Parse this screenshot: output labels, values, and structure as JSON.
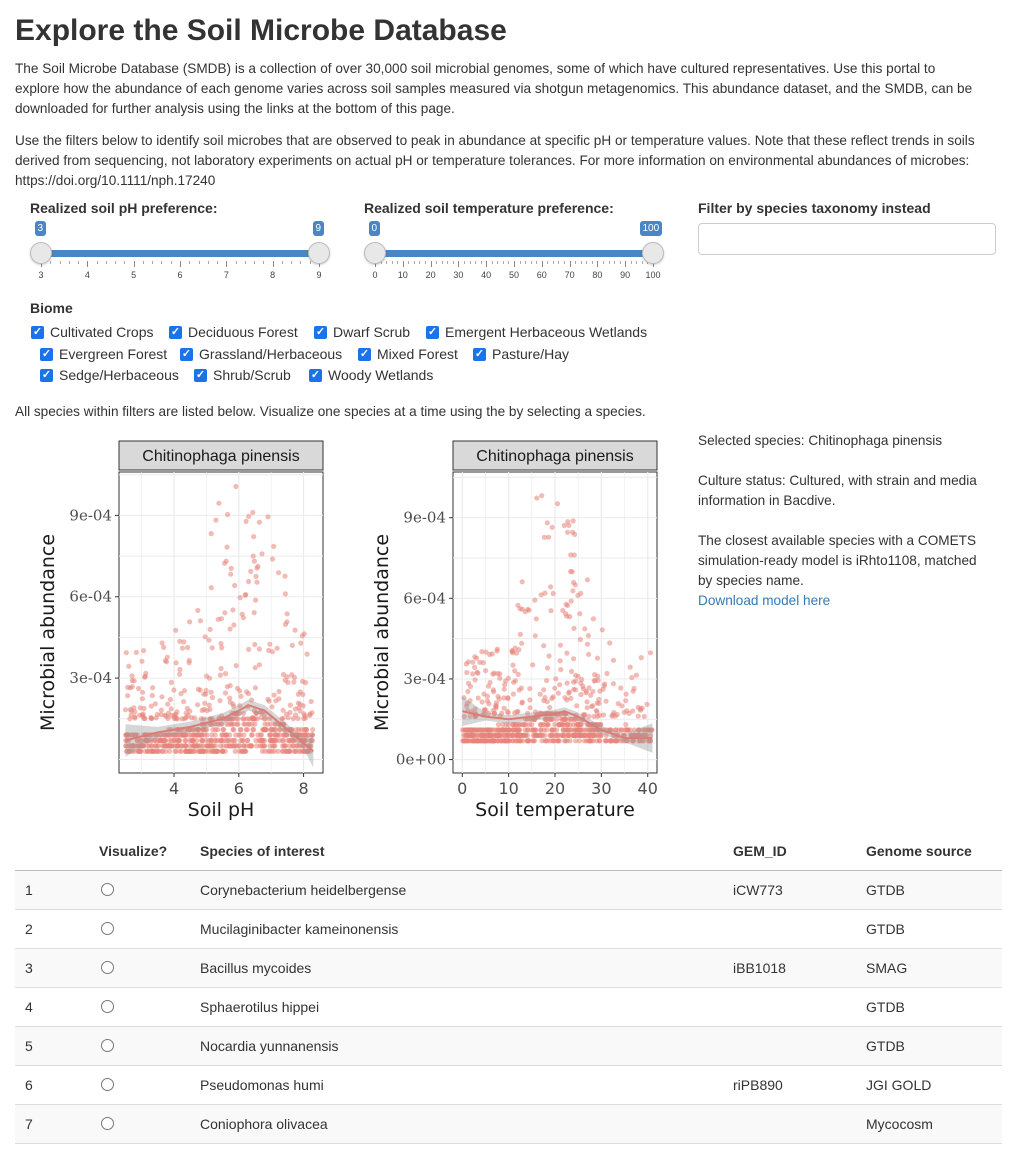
{
  "header": {
    "title": "Explore the Soil Microbe Database",
    "intro_lines": [
      "The Soil Microbe Database (SMDB) is a collection of over 30,000 soil microbial genomes, some of which have cultured representatives. Use this portal to",
      "explore how the abundance of each genome varies across soil samples measured via shotgun metagenomics. This abundance dataset, and the SMDB, can be",
      "downloaded for further analysis using the links at the bottom of this page."
    ],
    "filter_lines": [
      "Use the filters below to identify soil microbes that are observed to peak in abundance at specific pH or temperature values. Note that these reflect trends in soils",
      "derived from sequencing, not laboratory experiments on actual pH or temperature tolerances. For more information on environmental abundances of microbes:",
      "https://doi.org/10.1111/nph.17240"
    ]
  },
  "filters": {
    "ph": {
      "label": "Realized soil pH preference:",
      "min": 3,
      "max": 9,
      "low": 3,
      "high": 9,
      "low_label": "3",
      "high_label": "9",
      "tick_labels": [
        "3",
        "4",
        "5",
        "6",
        "7",
        "8",
        "9"
      ]
    },
    "temp": {
      "label": "Realized soil temperature preference:",
      "min": 0,
      "max": 100,
      "low": 0,
      "high": 100,
      "low_label": "0",
      "high_label": "100",
      "tick_labels": [
        "0",
        "10",
        "20",
        "30",
        "40",
        "50",
        "60",
        "70",
        "80",
        "90",
        "100"
      ]
    },
    "taxonomy": {
      "label": "Filter by species taxonomy instead",
      "value": "",
      "placeholder": ""
    }
  },
  "biome": {
    "label": "Biome",
    "options": [
      {
        "label": "Cultivated Crops",
        "checked": true
      },
      {
        "label": "Deciduous Forest",
        "checked": true
      },
      {
        "label": "Dwarf Scrub",
        "checked": true
      },
      {
        "label": "Emergent Herbaceous Wetlands",
        "checked": true
      },
      {
        "label": "Evergreen Forest",
        "checked": true
      },
      {
        "label": "Grassland/Herbaceous",
        "checked": true
      },
      {
        "label": "Mixed Forest",
        "checked": true
      },
      {
        "label": "Pasture/Hay",
        "checked": true
      },
      {
        "label": "Sedge/Herbaceous",
        "checked": true
      },
      {
        "label": "Shrub/Scrub",
        "checked": true
      },
      {
        "label": "Woody Wetlands",
        "checked": true
      }
    ],
    "note": "All species within filters are listed below. Visualize one species at a time using the by selecting a species."
  },
  "side_info": {
    "selected": "Selected species: Chitinophaga pinensis",
    "culture_1": "Culture status: Cultured, with strain and media",
    "culture_2": "information in Bacdive.",
    "model_1": "The closest available species with a COMETS",
    "model_2": "simulation-ready model is iRhto1108, matched",
    "model_3": "by species name.",
    "download_link": "Download model here"
  },
  "chart_data": [
    {
      "type": "scatter",
      "facet_title": "Chitinophaga pinensis",
      "xlabel": "Soil pH",
      "ylabel": "Microbial abundance",
      "x_ticks": [
        "4",
        "6",
        "8"
      ],
      "y_ticks": [
        "3e-04",
        "6e-04",
        "9e-04"
      ],
      "xlim": [
        2.3,
        8.6
      ],
      "ylim": [
        -5e-05,
        0.00106
      ],
      "point_color": "#e8847a",
      "trend": {
        "x": [
          2.5,
          3.5,
          4.5,
          5.5,
          6.0,
          6.3,
          6.8,
          7.3,
          8.0,
          8.3
        ],
        "y": [
          7e-05,
          0.0001,
          0.00012,
          0.00015,
          0.00018,
          0.0002,
          0.00018,
          0.00013,
          6e-05,
          3e-05
        ]
      }
    },
    {
      "type": "scatter",
      "facet_title": "Chitinophaga pinensis",
      "xlabel": "Soil temperature",
      "ylabel": "Microbial abundance",
      "x_ticks": [
        "0",
        "10",
        "20",
        "30",
        "40"
      ],
      "y_ticks": [
        "0e+00",
        "3e-04",
        "6e-04",
        "9e-04"
      ],
      "xlim": [
        -2,
        42
      ],
      "ylim": [
        -5e-05,
        0.00107
      ],
      "point_color": "#e8847a",
      "trend": {
        "x": [
          0,
          5,
          10,
          15,
          20,
          22,
          25,
          30,
          35,
          41
        ],
        "y": [
          0.00018,
          0.00016,
          0.00015,
          0.00016,
          0.00017,
          0.00018,
          0.00016,
          0.00011,
          8e-05,
          8e-05
        ]
      }
    }
  ],
  "table": {
    "columns": [
      "",
      "Visualize?",
      "Species of interest",
      "GEM_ID",
      "Genome source"
    ],
    "rows": [
      {
        "n": "1",
        "species": "Corynebacterium heidelbergense",
        "gem": "iCW773",
        "source": "GTDB"
      },
      {
        "n": "2",
        "species": "Mucilaginibacter kameinonensis",
        "gem": "",
        "source": "GTDB"
      },
      {
        "n": "3",
        "species": "Bacillus mycoides",
        "gem": "iBB1018",
        "source": "SMAG"
      },
      {
        "n": "4",
        "species": "Sphaerotilus hippei",
        "gem": "",
        "source": "GTDB"
      },
      {
        "n": "5",
        "species": "Nocardia yunnanensis",
        "gem": "",
        "source": "GTDB"
      },
      {
        "n": "6",
        "species": "Pseudomonas humi",
        "gem": "riPB890",
        "source": "JGI GOLD"
      },
      {
        "n": "7",
        "species": "Coniophora olivacea",
        "gem": "",
        "source": "Mycocosm"
      }
    ]
  }
}
